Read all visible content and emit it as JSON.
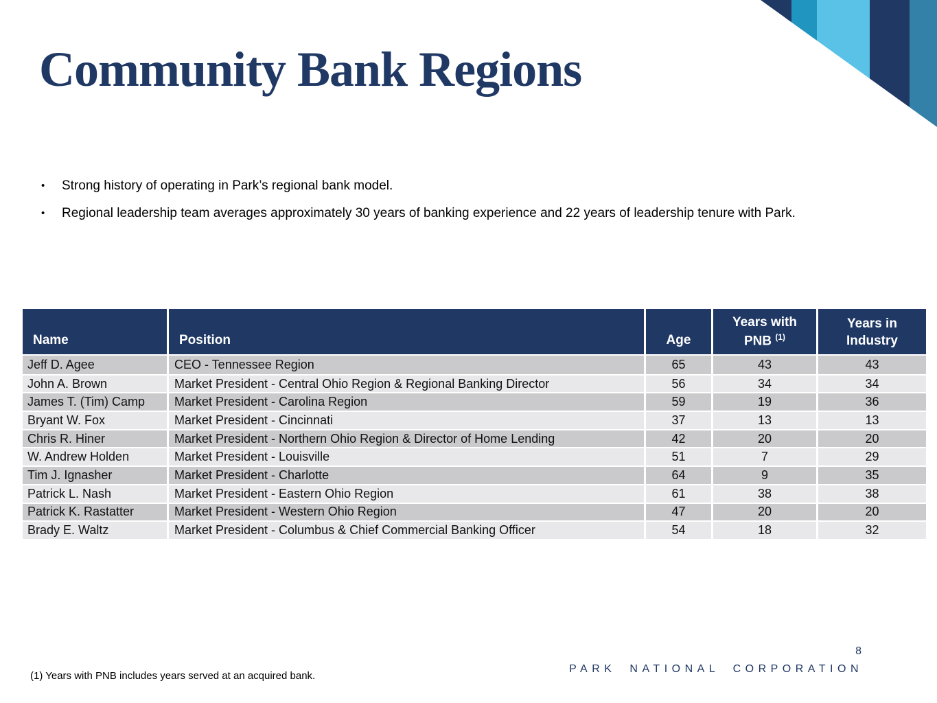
{
  "slide": {
    "title": "Community Bank Regions",
    "page_number": "8",
    "footer_brand": "PARK NATIONAL CORPORATION",
    "footnote": "(1) Years with PNB includes years served at an acquired bank.",
    "bullet_marker": "•"
  },
  "bullets": [
    "Strong history of operating in Park’s regional bank model.",
    "Regional leadership team averages approximately 30 years of banking experience and 22 years of leadership tenure with Park."
  ],
  "table": {
    "headers": {
      "name": "Name",
      "position": "Position",
      "age": "Age",
      "pnb_line1": "Years with",
      "pnb_line2": "PNB",
      "pnb_sup": "(1)",
      "industry_line1": "Years in",
      "industry_line2": "Industry"
    },
    "rows": [
      {
        "name": "Jeff D. Agee",
        "position": "CEO - Tennessee Region",
        "age": "65",
        "pnb": "43",
        "industry": "43"
      },
      {
        "name": "John A. Brown",
        "position": "Market President - Central Ohio Region & Regional Banking Director",
        "age": "56",
        "pnb": "34",
        "industry": "34"
      },
      {
        "name": "James T. (Tim) Camp",
        "position": "Market President - Carolina Region",
        "age": "59",
        "pnb": "19",
        "industry": "36"
      },
      {
        "name": "Bryant W. Fox",
        "position": "Market President - Cincinnati",
        "age": "37",
        "pnb": "13",
        "industry": "13"
      },
      {
        "name": "Chris R. Hiner",
        "position": "Market President - Northern Ohio Region & Director of Home Lending",
        "age": "42",
        "pnb": "20",
        "industry": "20"
      },
      {
        "name": "W. Andrew Holden",
        "position": "Market President - Louisville",
        "age": "51",
        "pnb": "7",
        "industry": "29"
      },
      {
        "name": "Tim J. Ignasher",
        "position": "Market President - Charlotte",
        "age": "64",
        "pnb": "9",
        "industry": "35"
      },
      {
        "name": "Patrick L. Nash",
        "position": "Market President - Eastern Ohio Region",
        "age": "61",
        "pnb": "38",
        "industry": "38"
      },
      {
        "name": "Patrick K. Rastatter",
        "position": "Market President - Western Ohio Region",
        "age": "47",
        "pnb": "20",
        "industry": "20"
      },
      {
        "name": "Brady E. Waltz",
        "position": "Market President - Columbus & Chief Commercial Banking Officer",
        "age": "54",
        "pnb": "18",
        "industry": "32"
      }
    ]
  },
  "colors": {
    "navy": "#1F3864",
    "teal_stripe": "#2095BF",
    "light_blue_stripe": "#5BC2E7",
    "steel_blue_stripe": "#3380A8",
    "row_dark": "#CACACC",
    "row_light": "#E8E8EA"
  }
}
